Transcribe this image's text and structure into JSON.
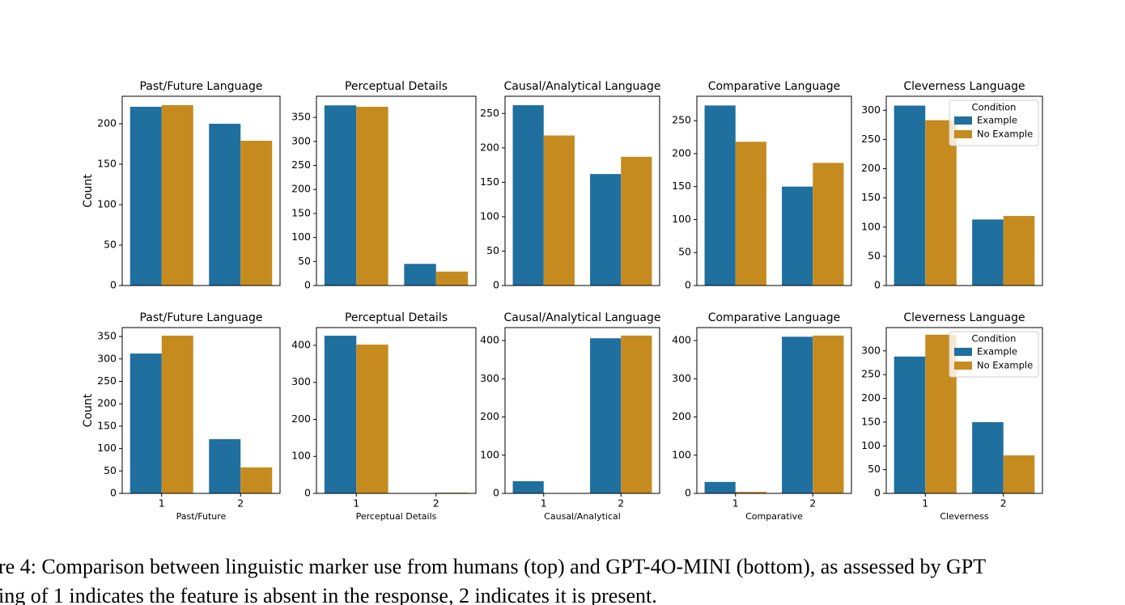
{
  "chart_data": [
    {
      "type": "bar",
      "title": "Past/Future Language",
      "ylabel": "Count",
      "categories": [
        null,
        null
      ],
      "series": [
        {
          "color": "#1f6f9f",
          "values": [
            221,
            200
          ]
        },
        {
          "color": "#c58b1f",
          "values": [
            223,
            179
          ]
        }
      ],
      "ylim": [
        0,
        234
      ],
      "yticks": [
        0,
        50,
        100,
        150,
        200
      ]
    },
    {
      "type": "bar",
      "title": "Perceptual Details",
      "categories": [
        null,
        null
      ],
      "series": [
        {
          "color": "#1f6f9f",
          "values": [
            375,
            45
          ]
        },
        {
          "color": "#c58b1f",
          "values": [
            372,
            29
          ]
        }
      ],
      "ylim": [
        0,
        394
      ],
      "yticks": [
        0,
        50,
        100,
        150,
        200,
        250,
        300,
        350
      ]
    },
    {
      "type": "bar",
      "title": "Causal/Analytical Language",
      "categories": [
        null,
        null
      ],
      "series": [
        {
          "color": "#1f6f9f",
          "values": [
            262,
            162
          ]
        },
        {
          "color": "#c58b1f",
          "values": [
            218,
            187
          ]
        }
      ],
      "ylim": [
        0,
        275
      ],
      "yticks": [
        0,
        50,
        100,
        150,
        200,
        250
      ]
    },
    {
      "type": "bar",
      "title": "Comparative Language",
      "categories": [
        null,
        null
      ],
      "series": [
        {
          "color": "#1f6f9f",
          "values": [
            273,
            150
          ]
        },
        {
          "color": "#c58b1f",
          "values": [
            218,
            186
          ]
        }
      ],
      "ylim": [
        0,
        287
      ],
      "yticks": [
        0,
        50,
        100,
        150,
        200,
        250
      ]
    },
    {
      "type": "bar",
      "title": "Cleverness Language",
      "categories": [
        null,
        null
      ],
      "series": [
        {
          "name": "Example",
          "color": "#1f6f9f",
          "values": [
            308,
            113
          ]
        },
        {
          "name": "No Example",
          "color": "#c58b1f",
          "values": [
            283,
            119
          ]
        }
      ],
      "ylim": [
        0,
        324
      ],
      "yticks": [
        0,
        50,
        100,
        150,
        200,
        250,
        300
      ],
      "legend": {
        "title": "Condition",
        "corner": "upper right"
      }
    },
    {
      "type": "bar",
      "title": "Past/Future Language",
      "ylabel": "Count",
      "xlabel": "Past/Future",
      "categories": [
        "1",
        "2"
      ],
      "series": [
        {
          "color": "#1f6f9f",
          "values": [
            312,
            121
          ]
        },
        {
          "color": "#c58b1f",
          "values": [
            352,
            58
          ]
        }
      ],
      "ylim": [
        0,
        370
      ],
      "yticks": [
        0,
        50,
        100,
        150,
        200,
        250,
        300,
        350
      ]
    },
    {
      "type": "bar",
      "title": "Perceptual Details",
      "xlabel": "Perceptual Details",
      "categories": [
        "1",
        "2"
      ],
      "series": [
        {
          "color": "#1f6f9f",
          "values": [
            426,
            0
          ]
        },
        {
          "color": "#c58b1f",
          "values": [
            402,
            2
          ]
        }
      ],
      "ylim": [
        0,
        448
      ],
      "yticks": [
        0,
        100,
        200,
        300,
        400
      ]
    },
    {
      "type": "bar",
      "title": "Causal/Analytical Language",
      "xlabel": "Causal/Analytical",
      "categories": [
        "1",
        "2"
      ],
      "series": [
        {
          "color": "#1f6f9f",
          "values": [
            32,
            406
          ]
        },
        {
          "color": "#c58b1f",
          "values": [
            0,
            413
          ]
        }
      ],
      "ylim": [
        0,
        434
      ],
      "yticks": [
        0,
        100,
        200,
        300,
        400
      ]
    },
    {
      "type": "bar",
      "title": "Comparative Language",
      "xlabel": "Comparative",
      "categories": [
        "1",
        "2"
      ],
      "series": [
        {
          "color": "#1f6f9f",
          "values": [
            30,
            410
          ]
        },
        {
          "color": "#c58b1f",
          "values": [
            4,
            413
          ]
        }
      ],
      "ylim": [
        0,
        434
      ],
      "yticks": [
        0,
        100,
        200,
        300,
        400
      ]
    },
    {
      "type": "bar",
      "title": "Cleverness Language",
      "xlabel": "Cleverness",
      "categories": [
        "1",
        "2"
      ],
      "series": [
        {
          "name": "Example",
          "color": "#1f6f9f",
          "values": [
            288,
            150
          ]
        },
        {
          "name": "No Example",
          "color": "#c58b1f",
          "values": [
            334,
            80
          ]
        }
      ],
      "ylim": [
        0,
        349
      ],
      "yticks": [
        0,
        50,
        100,
        150,
        200,
        250,
        300
      ],
      "legend": {
        "title": "Condition",
        "corner": "upper right"
      }
    }
  ],
  "caption": {
    "lines": [
      "re 4: Comparison between linguistic marker use from humans (top) and GPT-4O-MINI (bottom), as assessed by GPT",
      "ing of 1 indicates the feature is absent in the response, 2 indicates it is present."
    ]
  }
}
